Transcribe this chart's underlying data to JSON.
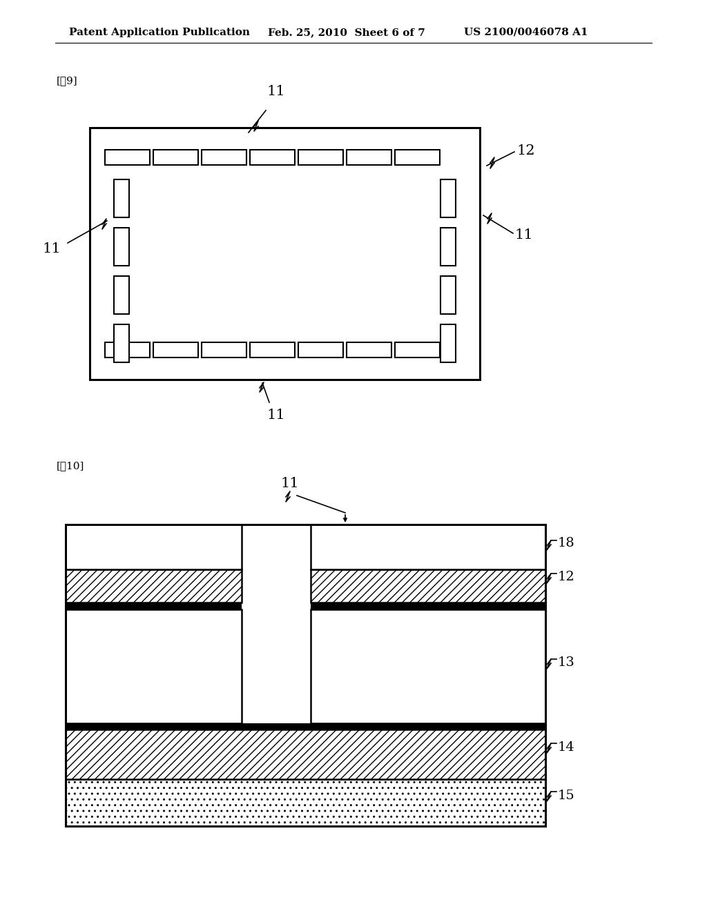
{
  "bg_color": "#ffffff",
  "header_text": "Patent Application Publication",
  "header_date": "Feb. 25, 2010  Sheet 6 of 7",
  "header_patent": "US 2100/0046078 A1",
  "fig9_label": "[図9]",
  "fig10_label": "[図10]"
}
